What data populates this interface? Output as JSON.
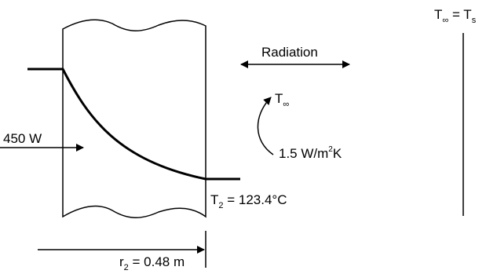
{
  "labels": {
    "ambient": {
      "t1": "T",
      "s1": "∞",
      "eq": " = T",
      "s2": "s"
    },
    "radiation": "Radiation",
    "t_inf": {
      "t": "T",
      "s": "∞"
    },
    "heat_in": "450 W",
    "h_coeff": {
      "a": "1.5 W/m",
      "sup": "2",
      "b": "K"
    },
    "t2": {
      "t": "T",
      "s": "2",
      "rest": " = 123.4°C"
    },
    "r2": {
      "r": "r",
      "s": "2",
      "rest": " = 0.48 m"
    }
  },
  "colors": {
    "stroke": "#000000",
    "background": "#ffffff"
  }
}
